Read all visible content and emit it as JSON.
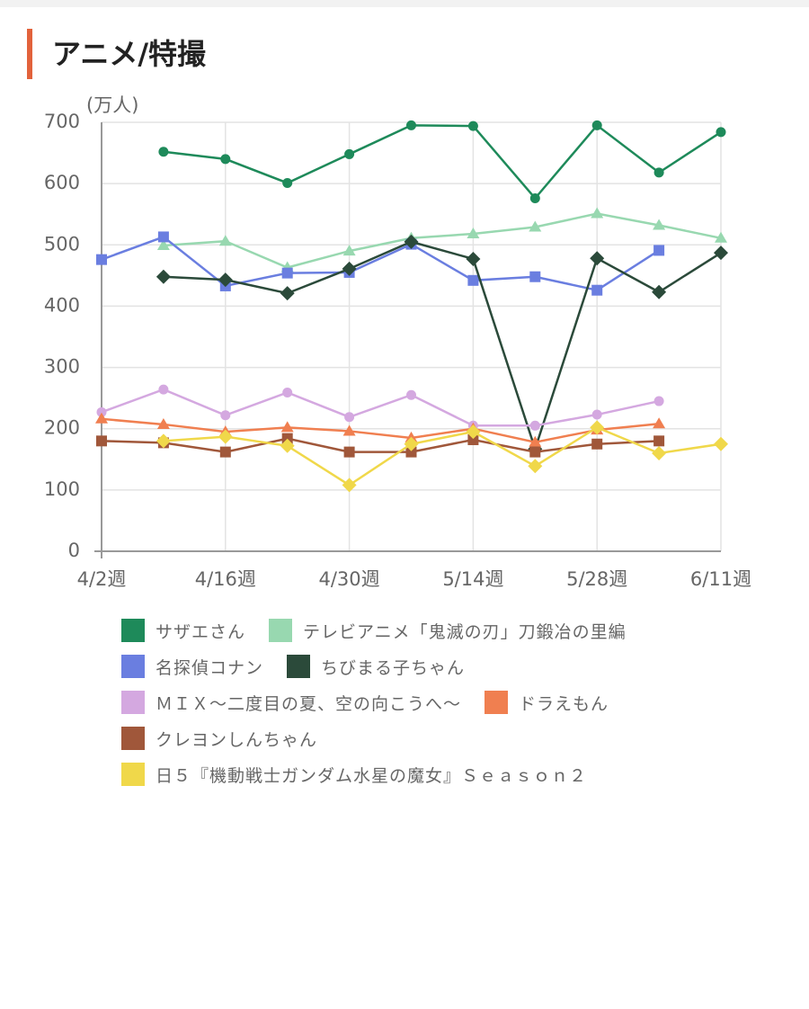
{
  "chart_data": {
    "type": "line",
    "title": "アニメ/特撮",
    "y_label": "(万人)",
    "categories": [
      "4/2週",
      null,
      "4/16週",
      null,
      "4/30週",
      null,
      "5/14週",
      null,
      "5/28週",
      null,
      "6/11週"
    ],
    "ylim": [
      0,
      700
    ],
    "yticks": [
      0,
      100,
      200,
      300,
      400,
      500,
      600,
      700
    ],
    "grid": true,
    "series": [
      {
        "name": "サザエさん",
        "color": "#1e8a5a",
        "marker": "circle",
        "values": [
          null,
          652,
          640,
          601,
          648,
          695,
          694,
          576,
          695,
          618,
          684
        ]
      },
      {
        "name": "テレビアニメ「鬼滅の刃」刀鍛冶の里編",
        "color": "#98d8b0",
        "marker": "triangle",
        "values": [
          null,
          499,
          506,
          463,
          490,
          511,
          518,
          529,
          551,
          532,
          511
        ]
      },
      {
        "name": "名探偵コナン",
        "color": "#6a7ee0",
        "marker": "square",
        "values": [
          476,
          513,
          433,
          454,
          455,
          501,
          442,
          448,
          426,
          491,
          null
        ]
      },
      {
        "name": "ちびまる子ちゃん",
        "color": "#2b4a3a",
        "marker": "diamond",
        "values": [
          null,
          448,
          443,
          421,
          461,
          505,
          477,
          167,
          478,
          423,
          487
        ]
      },
      {
        "name": "ＭＩＸ～二度目の夏、空の向こうへ～",
        "color": "#d4a8e0",
        "marker": "circle",
        "values": [
          227,
          264,
          222,
          259,
          219,
          255,
          205,
          205,
          223,
          245,
          null
        ]
      },
      {
        "name": "ドラえもん",
        "color": "#f07f50",
        "marker": "triangle",
        "values": [
          216,
          207,
          195,
          202,
          196,
          185,
          200,
          178,
          198,
          208,
          null
        ]
      },
      {
        "name": "クレヨンしんちゃん",
        "color": "#a0573a",
        "marker": "square",
        "values": [
          180,
          177,
          162,
          184,
          162,
          162,
          182,
          162,
          175,
          180,
          null
        ]
      },
      {
        "name": "日５『機動戦士ガンダム水星の魔女』Ｓｅａｓｏｎ２",
        "color": "#f0d84a",
        "marker": "diamond",
        "values": [
          null,
          180,
          187,
          172,
          108,
          175,
          195,
          139,
          202,
          160,
          175
        ]
      }
    ]
  }
}
